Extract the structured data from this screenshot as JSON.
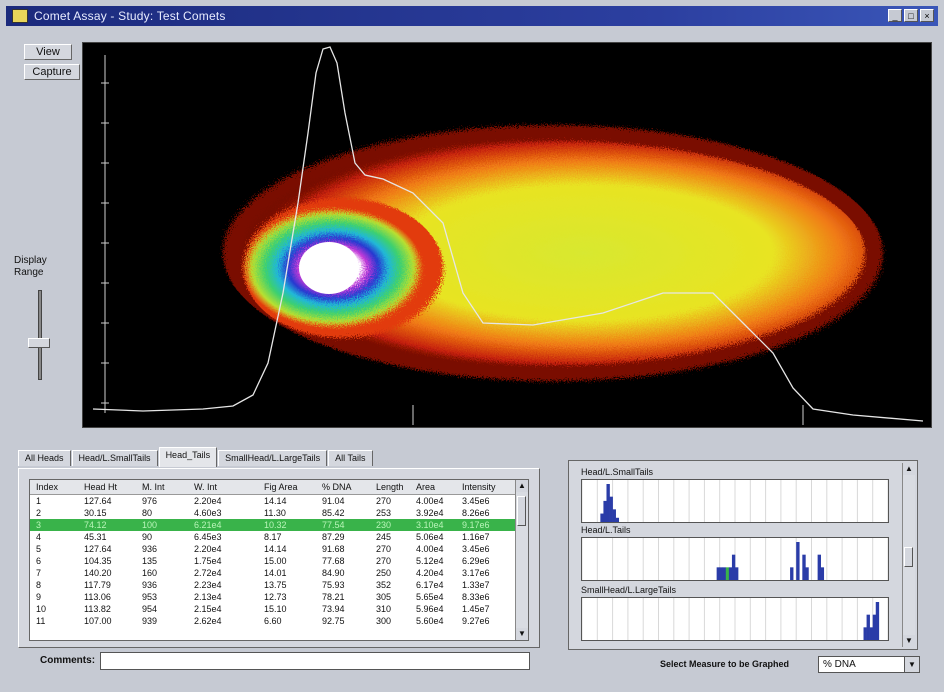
{
  "window": {
    "title": "Comet Assay  -  Study: Test Comets"
  },
  "left_panel": {
    "view_label": "View",
    "capture_label": "Capture",
    "display_range_line1": "Display",
    "display_range_line2": "Range"
  },
  "tabs": [
    "All Heads",
    "Head/L.SmallTails",
    "Head_Tails",
    "SmallHead/L.LargeTails",
    "All Tails"
  ],
  "active_tab_index": 2,
  "table": {
    "columns": [
      "Index",
      "Head Ht",
      "M. Int",
      "W. Int",
      "Fig Area",
      "% DNA",
      "Length",
      "Area",
      "Intensity"
    ],
    "rows": [
      [
        "1",
        "127.64",
        "976",
        "2.20e4",
        "14.14",
        "91.04",
        "270",
        "4.00e4",
        "3.45e6"
      ],
      [
        "2",
        "30.15",
        "80",
        "4.60e3",
        "11.30",
        "85.42",
        "253",
        "3.92e4",
        "8.26e6"
      ],
      [
        "3",
        "74.12",
        "100",
        "6.21e4",
        "10.32",
        "77.54",
        "230",
        "3.10e4",
        "9.17e6"
      ],
      [
        "4",
        "45.31",
        "90",
        "6.45e3",
        "8.17",
        "87.29",
        "245",
        "5.06e4",
        "1.16e7"
      ],
      [
        "5",
        "127.64",
        "936",
        "2.20e4",
        "14.14",
        "91.68",
        "270",
        "4.00e4",
        "3.45e6"
      ],
      [
        "6",
        "104.35",
        "135",
        "1.75e4",
        "15.00",
        "77.68",
        "270",
        "5.12e4",
        "6.29e6"
      ],
      [
        "7",
        "140.20",
        "160",
        "2.72e4",
        "14.01",
        "84.90",
        "250",
        "4.20e4",
        "3.17e6"
      ],
      [
        "8",
        "117.79",
        "936",
        "2.23e4",
        "13.75",
        "75.93",
        "352",
        "6.17e4",
        "1.33e7"
      ],
      [
        "9",
        "113.06",
        "953",
        "2.13e4",
        "12.73",
        "78.21",
        "305",
        "5.65e4",
        "8.33e6"
      ],
      [
        "10",
        "113.82",
        "954",
        "2.15e4",
        "15.10",
        "73.94",
        "310",
        "5.96e4",
        "1.45e7"
      ],
      [
        "11",
        "107.00",
        "939",
        "2.62e4",
        "6.60",
        "92.75",
        "300",
        "5.60e4",
        "9.27e6"
      ]
    ],
    "selected_row": 2
  },
  "comments": {
    "label": "Comments",
    "value": ""
  },
  "graphs": [
    {
      "title": "Head/L.SmallTails",
      "bars": [
        [
          6,
          2
        ],
        [
          7,
          5
        ],
        [
          8,
          9
        ],
        [
          9,
          6
        ],
        [
          10,
          3
        ],
        [
          11,
          1
        ]
      ]
    },
    {
      "title": "Head/L.Tails",
      "bars": [
        [
          44,
          1
        ],
        [
          45,
          1
        ],
        [
          46,
          1
        ],
        [
          47,
          1
        ],
        [
          48,
          1
        ],
        [
          49,
          2
        ],
        [
          50,
          1
        ],
        [
          68,
          1
        ],
        [
          70,
          3
        ],
        [
          72,
          2
        ],
        [
          73,
          1
        ],
        [
          77,
          2
        ],
        [
          78,
          1
        ]
      ]
    },
    {
      "title": "SmallHead/L.LargeTails",
      "bars": [
        [
          92,
          1
        ],
        [
          93,
          2
        ],
        [
          94,
          1
        ],
        [
          95,
          2
        ],
        [
          96,
          3
        ]
      ]
    }
  ],
  "measure": {
    "label": "Select Measure to be Graphed",
    "value": "% DNA"
  },
  "colors": {
    "title_bar": "#1b2a7c",
    "selected_row": "#39b34a",
    "histogram_bar": "#2a3ca8",
    "histogram_highlight": "#39b34a"
  }
}
